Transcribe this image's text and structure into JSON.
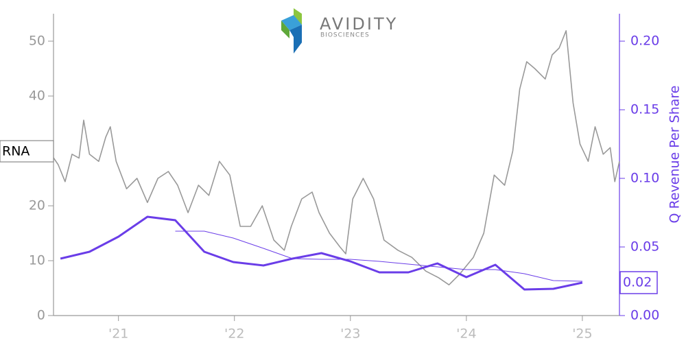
{
  "chart_data": {
    "type": "line",
    "logo": {
      "name": "AVIDITY",
      "subtitle": "BIOSCIENCES"
    },
    "y2label": "Q Revenue Per Share",
    "xlim": [
      2020.44,
      2025.32
    ],
    "xticks": [
      {
        "value": 2021,
        "label": "'21"
      },
      {
        "value": 2022,
        "label": "'22"
      },
      {
        "value": 2023,
        "label": "'23"
      },
      {
        "value": 2024,
        "label": "'24"
      },
      {
        "value": 2025,
        "label": "'25"
      }
    ],
    "ylim": [
      0,
      55
    ],
    "yticks": [
      0,
      10,
      20,
      30,
      40,
      50
    ],
    "y2lim": [
      0,
      0.22
    ],
    "y2ticks": [
      {
        "value": 0,
        "label": "0.00"
      },
      0.05,
      {
        "value": 0.1,
        "label": "0.10"
      },
      0.15,
      {
        "value": 0.2,
        "label": "0.20"
      }
    ],
    "series": [
      {
        "name": "RNA",
        "color": "#999999",
        "width": 1.6,
        "x": [
          2020.44,
          2020.48,
          2020.54,
          2020.6,
          2020.66,
          2020.7,
          2020.75,
          2020.83,
          2020.89,
          2020.93,
          2020.98,
          2021.07,
          2021.16,
          2021.25,
          2021.34,
          2021.43,
          2021.51,
          2021.6,
          2021.69,
          2021.78,
          2021.87,
          2021.96,
          2022.05,
          2022.14,
          2022.24,
          2022.34,
          2022.43,
          2022.49,
          2022.58,
          2022.67,
          2022.73,
          2022.82,
          2022.91,
          2022.96,
          2023.02,
          2023.11,
          2023.2,
          2023.29,
          2023.41,
          2023.53,
          2023.65,
          2023.76,
          2023.85,
          2023.94,
          2024.06,
          2024.15,
          2024.24,
          2024.33,
          2024.4,
          2024.46,
          2024.52,
          2024.59,
          2024.68,
          2024.74,
          2024.8,
          2024.86,
          2024.92,
          2024.98,
          2025.05,
          2025.11,
          2025.18,
          2025.24,
          2025.28,
          2025.32
        ],
        "values": [
          28.75,
          27.5,
          24.4,
          29.4,
          28.7,
          35.6,
          29.4,
          28.1,
          32.5,
          34.4,
          28.1,
          23.1,
          25,
          20.6,
          25,
          26.25,
          23.75,
          18.75,
          23.75,
          21.9,
          28.1,
          25.6,
          16.25,
          16.25,
          20,
          13.75,
          11.9,
          16.25,
          21.25,
          22.5,
          18.75,
          15,
          12.5,
          11.25,
          21.25,
          25,
          21.25,
          13.75,
          11.9,
          10.6,
          8.1,
          6.9,
          5.6,
          7.5,
          10.6,
          15,
          25.6,
          23.75,
          30,
          41.25,
          46.25,
          45,
          43.1,
          47.5,
          48.75,
          51.9,
          38.75,
          31.25,
          28.1,
          34.4,
          29.4,
          30.6,
          24.4,
          28.1
        ]
      },
      {
        "color": "#6a3de8",
        "width": 3,
        "axis": "y2",
        "x": [
          2020.5,
          2020.75,
          2021.0,
          2021.25,
          2021.49,
          2021.74,
          2021.99,
          2022.25,
          2022.5,
          2022.75,
          2023.0,
          2023.25,
          2023.5,
          2023.75,
          2024.0,
          2024.25,
          2024.5,
          2024.75,
          2025.0
        ],
        "values": [
          0.0415,
          0.0465,
          0.0575,
          0.072,
          0.0695,
          0.0465,
          0.039,
          0.0365,
          0.0415,
          0.0455,
          0.0395,
          0.0315,
          0.0315,
          0.038,
          0.028,
          0.037,
          0.019,
          0.0195,
          0.024
        ],
        "value_labels": [
          null,
          null,
          null,
          null,
          null,
          null,
          null,
          null,
          null,
          null,
          null,
          null,
          null,
          null,
          null,
          null,
          null,
          null,
          "0.02"
        ]
      },
      {
        "color": "#6a3de8",
        "width": 1,
        "axis": "y2",
        "x": [
          2021.49,
          2021.74,
          2021.99,
          2022.25,
          2022.5,
          2022.75,
          2023.0,
          2023.25,
          2023.5,
          2023.75,
          2024.0,
          2024.25,
          2024.5,
          2024.75,
          2025.0
        ],
        "values": [
          0.0615,
          0.0615,
          0.0565,
          0.049,
          0.0415,
          0.041,
          0.041,
          0.0395,
          0.0375,
          0.0355,
          0.0335,
          0.0335,
          0.0305,
          0.0255,
          0.025
        ]
      }
    ]
  }
}
